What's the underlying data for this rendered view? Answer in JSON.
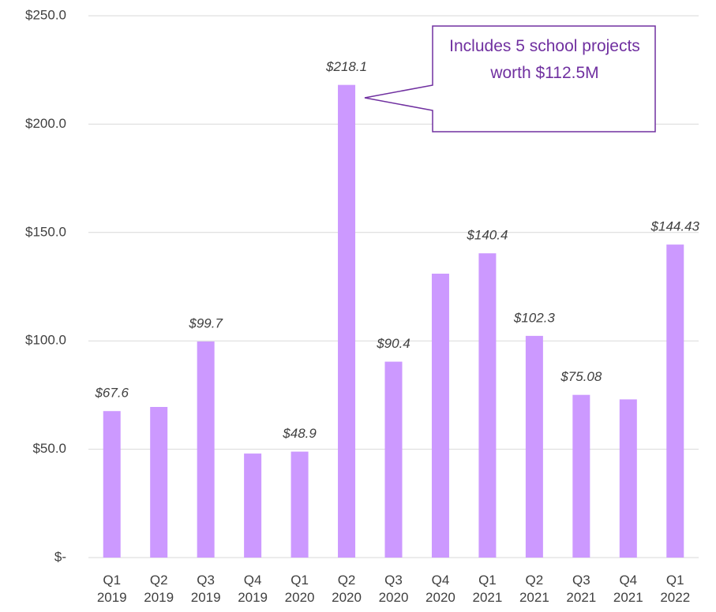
{
  "chart_data": {
    "type": "bar",
    "categories": [
      "Q1 2019",
      "Q2 2019",
      "Q3 2019",
      "Q4 2019",
      "Q1 2020",
      "Q2 2020",
      "Q3 2020",
      "Q4 2020",
      "Q1 2021",
      "Q2 2021",
      "Q3 2021",
      "Q4 2021",
      "Q1 2022"
    ],
    "values": [
      67.6,
      69.5,
      99.7,
      48,
      48.9,
      218.1,
      90.4,
      131,
      140.4,
      102.3,
      75.08,
      73,
      144.43
    ],
    "value_labels": [
      "$67.6",
      null,
      "$99.7",
      null,
      "$48.9",
      "$218.1",
      "$90.4",
      null,
      "$140.4",
      "$102.3",
      "$75.08",
      null,
      "$144.43"
    ],
    "color": "#cc99ff",
    "ylim": [
      0,
      250
    ],
    "yticks": [
      {
        "value": 0,
        "label": "$-"
      },
      {
        "value": 50,
        "label": "$50.0"
      },
      {
        "value": 100,
        "label": "$100.0"
      },
      {
        "value": 150,
        "label": "$150.0"
      },
      {
        "value": 200,
        "label": "$200.0"
      },
      {
        "value": 250,
        "label": "$250.0"
      }
    ],
    "grid": true,
    "annotation": {
      "text": "Includes 5 school projects worth $112.5M",
      "target": "Q2 2020"
    }
  }
}
